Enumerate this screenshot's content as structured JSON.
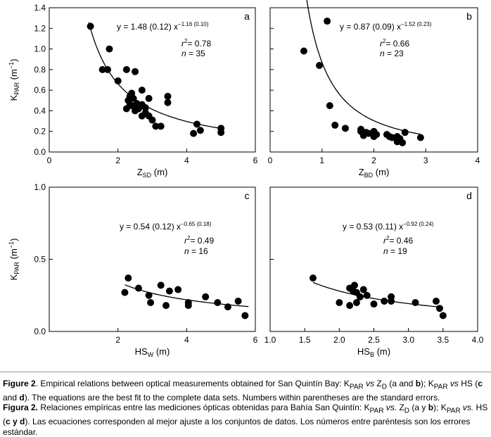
{
  "colors": {
    "marker": "#000000",
    "axis": "#000000",
    "text": "#000000"
  },
  "chart_data": [
    {
      "id": "a",
      "type": "scatter",
      "panel_label": "a",
      "xlabel_main": "Z",
      "xlabel_sub": "SD",
      "xlabel_tail": " (m)",
      "ylabel_main": "K",
      "ylabel_sub": "PAR",
      "ylabel_tail": " (m",
      "ylabel_sup": "−1",
      "ylabel_close": ")",
      "xlim": [
        0,
        6
      ],
      "ylim": [
        0,
        1.4
      ],
      "xticks": [
        0,
        2,
        4,
        6
      ],
      "xtick_labels": [
        "0",
        "2",
        "4",
        "6"
      ],
      "yticks": [
        0,
        0.2,
        0.4,
        0.6,
        0.8,
        1.0,
        1.2,
        1.4
      ],
      "ytick_labels": [
        "0.0",
        "0.2",
        "0.4",
        "0.6",
        "0.8",
        "1.0",
        "1.2",
        "1.4"
      ],
      "fit": {
        "a": 1.48,
        "b": -1.16,
        "x_from": 1.15,
        "x_to": 5.0
      },
      "eq_prefix": "y = 1.48 (0.12) x",
      "eq_exp": "−1.16 (0.10)",
      "r2_prefix": "r",
      "r2_value": "= 0.78",
      "n_label": "n",
      "n_value": " = 35",
      "points": [
        [
          1.2,
          1.22
        ],
        [
          1.55,
          0.8
        ],
        [
          1.7,
          0.8
        ],
        [
          1.75,
          1.0
        ],
        [
          2.0,
          0.69
        ],
        [
          2.25,
          0.8
        ],
        [
          2.5,
          0.78
        ],
        [
          2.25,
          0.42
        ],
        [
          2.35,
          0.54
        ],
        [
          2.4,
          0.57
        ],
        [
          2.3,
          0.5
        ],
        [
          2.4,
          0.45
        ],
        [
          2.45,
          0.52
        ],
        [
          2.5,
          0.4
        ],
        [
          2.55,
          0.47
        ],
        [
          2.7,
          0.6
        ],
        [
          2.7,
          0.46
        ],
        [
          2.7,
          0.35
        ],
        [
          2.8,
          0.38
        ],
        [
          2.9,
          0.52
        ],
        [
          2.9,
          0.35
        ],
        [
          3.0,
          0.31
        ],
        [
          3.1,
          0.25
        ],
        [
          3.25,
          0.25
        ],
        [
          3.45,
          0.54
        ],
        [
          3.45,
          0.48
        ],
        [
          4.2,
          0.18
        ],
        [
          4.3,
          0.27
        ],
        [
          4.4,
          0.21
        ],
        [
          5.0,
          0.23
        ],
        [
          5.0,
          0.19
        ],
        [
          2.6,
          0.42
        ],
        [
          2.8,
          0.43
        ],
        [
          2.35,
          0.46
        ],
        [
          2.5,
          0.44
        ]
      ]
    },
    {
      "id": "b",
      "type": "scatter",
      "panel_label": "b",
      "xlabel_main": "Z",
      "xlabel_sub": "BD",
      "xlabel_tail": " (m)",
      "xlim": [
        0,
        4
      ],
      "ylim": [
        0,
        1.4
      ],
      "xticks": [
        0,
        1,
        2,
        3,
        4
      ],
      "xtick_labels": [
        "0",
        "1",
        "2",
        "3",
        "4"
      ],
      "yticks": [
        0,
        0.2,
        0.4,
        0.6,
        0.8,
        1.0,
        1.2,
        1.4
      ],
      "fit": {
        "a": 0.87,
        "b": -1.52,
        "x_from": 0.65,
        "x_to": 2.9
      },
      "eq_prefix": "y = 0.87 (0.09) x",
      "eq_exp": "−1.52 (0.23)",
      "r2_prefix": "r",
      "r2_value": "= 0.66",
      "n_label": "n",
      "n_value": " = 23",
      "points": [
        [
          0.65,
          0.98
        ],
        [
          0.95,
          0.84
        ],
        [
          1.1,
          1.27
        ],
        [
          1.15,
          0.45
        ],
        [
          1.25,
          0.26
        ],
        [
          1.45,
          0.23
        ],
        [
          1.75,
          0.22
        ],
        [
          1.75,
          0.2
        ],
        [
          1.8,
          0.16
        ],
        [
          1.85,
          0.19
        ],
        [
          1.9,
          0.18
        ],
        [
          2.0,
          0.2
        ],
        [
          2.0,
          0.15
        ],
        [
          2.05,
          0.17
        ],
        [
          2.25,
          0.17
        ],
        [
          2.3,
          0.15
        ],
        [
          2.35,
          0.14
        ],
        [
          2.45,
          0.15
        ],
        [
          2.5,
          0.13
        ],
        [
          2.55,
          0.09
        ],
        [
          2.45,
          0.1
        ],
        [
          2.6,
          0.19
        ],
        [
          2.9,
          0.14
        ]
      ]
    },
    {
      "id": "c",
      "type": "scatter",
      "panel_label": "c",
      "xlabel_main": "HS",
      "xlabel_sub": "W",
      "xlabel_tail": " (m)",
      "ylabel_main": "K",
      "ylabel_sub": "PAR",
      "ylabel_tail": " (m",
      "ylabel_sup": "−1",
      "ylabel_close": ")",
      "xlim": [
        0,
        6
      ],
      "ylim": [
        0,
        1.0
      ],
      "xticks": [
        2,
        4,
        6
      ],
      "xtick_labels": [
        "2",
        "4",
        "6"
      ],
      "yticks": [
        0,
        0.5,
        1.0
      ],
      "ytick_labels": [
        "0.0",
        "0.5",
        "1.0"
      ],
      "fit": {
        "a": 0.54,
        "b": -0.65,
        "x_from": 2.2,
        "x_to": 5.8
      },
      "eq_prefix": "y = 0.54 (0.12) x",
      "eq_exp": "−0.65 (0.18)",
      "r2_prefix": "r",
      "r2_value": "= 0.49",
      "n_label": "n",
      "n_value": " = 16",
      "points": [
        [
          2.2,
          0.27
        ],
        [
          2.3,
          0.37
        ],
        [
          2.6,
          0.3
        ],
        [
          2.9,
          0.25
        ],
        [
          2.95,
          0.2
        ],
        [
          3.25,
          0.32
        ],
        [
          3.4,
          0.18
        ],
        [
          3.5,
          0.28
        ],
        [
          3.75,
          0.29
        ],
        [
          4.05,
          0.2
        ],
        [
          4.05,
          0.18
        ],
        [
          4.55,
          0.24
        ],
        [
          4.9,
          0.2
        ],
        [
          5.2,
          0.17
        ],
        [
          5.5,
          0.21
        ],
        [
          5.7,
          0.11
        ]
      ]
    },
    {
      "id": "d",
      "type": "scatter",
      "panel_label": "d",
      "xlabel_main": "HS",
      "xlabel_sub": "B",
      "xlabel_tail": " (m)",
      "xlim": [
        1.0,
        4.0
      ],
      "ylim": [
        0,
        1.0
      ],
      "xticks": [
        1.0,
        1.5,
        2.0,
        2.5,
        3.0,
        3.5,
        4.0
      ],
      "xtick_labels": [
        "1.0",
        "1.5",
        "2.0",
        "2.5",
        "3.0",
        "3.5",
        "4.0"
      ],
      "yticks": [
        0,
        0.5,
        1.0
      ],
      "fit": {
        "a": 0.53,
        "b": -0.92,
        "x_from": 1.62,
        "x_to": 3.5
      },
      "eq_prefix": "y = 0.53 (0.11) x",
      "eq_exp": "−0.92 (0.24)",
      "r2_prefix": "r",
      "r2_value": "= 0.46",
      "n_label": "n",
      "n_value": " = 19",
      "points": [
        [
          1.62,
          0.37
        ],
        [
          2.0,
          0.2
        ],
        [
          2.15,
          0.18
        ],
        [
          2.15,
          0.3
        ],
        [
          2.2,
          0.28
        ],
        [
          2.22,
          0.32
        ],
        [
          2.25,
          0.2
        ],
        [
          2.25,
          0.27
        ],
        [
          2.3,
          0.24
        ],
        [
          2.35,
          0.29
        ],
        [
          2.4,
          0.25
        ],
        [
          2.5,
          0.19
        ],
        [
          2.65,
          0.21
        ],
        [
          2.75,
          0.24
        ],
        [
          2.75,
          0.21
        ],
        [
          3.1,
          0.2
        ],
        [
          3.4,
          0.21
        ],
        [
          3.45,
          0.16
        ],
        [
          3.5,
          0.11
        ]
      ]
    }
  ],
  "caption": {
    "en_label": "Figure 2",
    "en_text1": ". Empirical relations between optical measurements obtained for San Quintín Bay: K",
    "en_sub_par": "PAR",
    "en_vs1": " vs",
    "en_text2": " Z",
    "en_sub_d": "D",
    "en_text3": " (a and ",
    "en_b": "b",
    "en_text4": "); K",
    "en_vs2": " vs",
    "en_text5": " HS (",
    "en_c": "c",
    "en_and": " and ",
    "en_d": "d",
    "en_text6": "). The equations are the best fit to the complete data sets. Numbers within parentheses are the standard errors.",
    "es_label": "Figura 2.",
    "es_text1": " Relaciones empíricas entre las mediciones ópticas obtenidas para Bahía San Quintín: K",
    "es_vs1": " vs.",
    "es_text2": " Z",
    "es_text3": " (a y ",
    "es_b": "b",
    "es_text4": "); K",
    "es_vs2": " vs.",
    "es_text5": " HS (",
    "es_cyd": "c y d",
    "es_text6": "). Las ecuaciones corresponden al mejor ajuste a los conjuntos de datos. Los números entre paréntesis son los errores estándar."
  }
}
